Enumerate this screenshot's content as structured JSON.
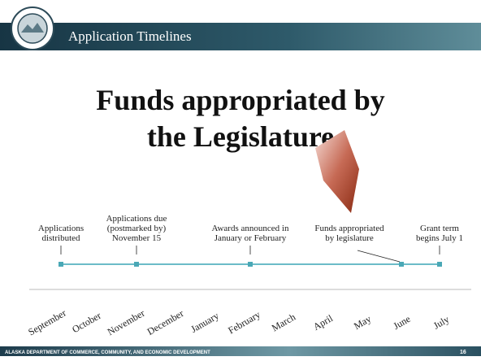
{
  "header": {
    "title": "Application Timelines"
  },
  "title": {
    "lines": [
      "Funds appropriated by",
      "the Legislature"
    ]
  },
  "timeline": {
    "events": [
      {
        "lines": [
          "Applications",
          "distributed"
        ]
      },
      {
        "lines": [
          "Applications due",
          "(postmarked by)",
          "November 15"
        ]
      },
      {
        "lines": [
          "Awards announced in",
          "January or February"
        ]
      },
      {
        "lines": [
          "Funds appropriated",
          "by legislature"
        ]
      },
      {
        "lines": [
          "Grant term",
          "begins July 1"
        ]
      }
    ],
    "months": [
      "September",
      "October",
      "November",
      "December",
      "January",
      "February",
      "March",
      "April",
      "May",
      "June",
      "July"
    ]
  },
  "footer": {
    "text": "ALASKA DEPARTMENT OF COMMERCE, COMMUNITY, AND ECONOMIC DEVELOPMENT",
    "page_number": "16"
  }
}
